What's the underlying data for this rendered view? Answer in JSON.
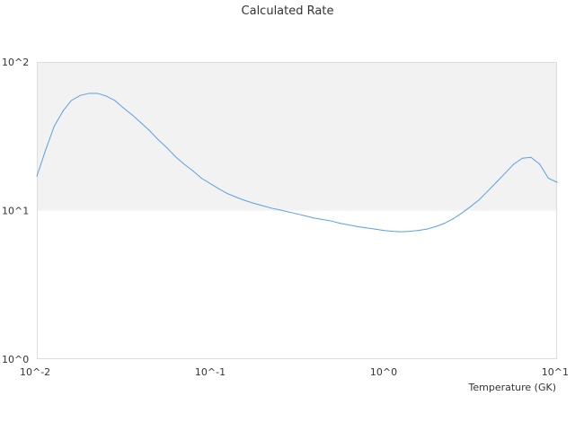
{
  "chart_data": {
    "type": "line",
    "title": "Calculated Rate",
    "xlabel": "Temperature (GK)",
    "ylabel": "",
    "x_scale": "log",
    "y_scale": "log",
    "xlim": [
      0.01,
      10
    ],
    "ylim": [
      1,
      100
    ],
    "grid": false,
    "shaded_band": {
      "y_from": 10,
      "y_to": 100,
      "color": "#f2f2f2"
    },
    "line_color": "#5aa0e6",
    "x_ticks": [
      {
        "value": 0.01,
        "label": "10^-2"
      },
      {
        "value": 0.1,
        "label": "10^-1"
      },
      {
        "value": 1,
        "label": "10^0"
      },
      {
        "value": 10,
        "label": "10^1"
      }
    ],
    "y_ticks": [
      {
        "value": 1,
        "label": "10^0"
      },
      {
        "value": 10,
        "label": "10^1"
      },
      {
        "value": 100,
        "label": "10^2"
      }
    ],
    "series": [
      {
        "x": [
          0.01,
          0.0113,
          0.0126,
          0.0142,
          0.0158,
          0.0178,
          0.02,
          0.0224,
          0.0251,
          0.0282,
          0.0316,
          0.0355,
          0.0398,
          0.0447,
          0.0501,
          0.0562,
          0.0631,
          0.0708,
          0.0794,
          0.0891,
          0.1,
          0.1122,
          0.1259,
          0.1413,
          0.1585,
          0.1778,
          0.1995,
          0.2239,
          0.2512,
          0.2818,
          0.3162,
          0.3548,
          0.3981,
          0.4467,
          0.5012,
          0.5623,
          0.631,
          0.7079,
          0.7943,
          0.8913,
          1.0,
          1.122,
          1.259,
          1.413,
          1.585,
          1.778,
          1.995,
          2.239,
          2.512,
          2.818,
          3.162,
          3.548,
          3.981,
          4.467,
          5.012,
          5.623,
          6.31,
          7.079,
          7.943,
          8.913,
          10.0
        ],
        "y": [
          17.0,
          26.0,
          37.0,
          47.0,
          55.0,
          59.5,
          61.5,
          61.5,
          59.0,
          55.0,
          49.0,
          44.0,
          39.0,
          34.5,
          30.0,
          26.5,
          23.0,
          20.5,
          18.5,
          16.5,
          15.2,
          14.0,
          13.0,
          12.3,
          11.7,
          11.2,
          10.8,
          10.4,
          10.1,
          9.8,
          9.5,
          9.2,
          8.9,
          8.7,
          8.5,
          8.2,
          8.0,
          7.8,
          7.65,
          7.5,
          7.35,
          7.25,
          7.2,
          7.25,
          7.35,
          7.5,
          7.8,
          8.2,
          8.8,
          9.6,
          10.6,
          11.8,
          13.5,
          15.5,
          17.8,
          20.5,
          22.5,
          22.8,
          20.5,
          16.5,
          15.5
        ]
      }
    ]
  }
}
